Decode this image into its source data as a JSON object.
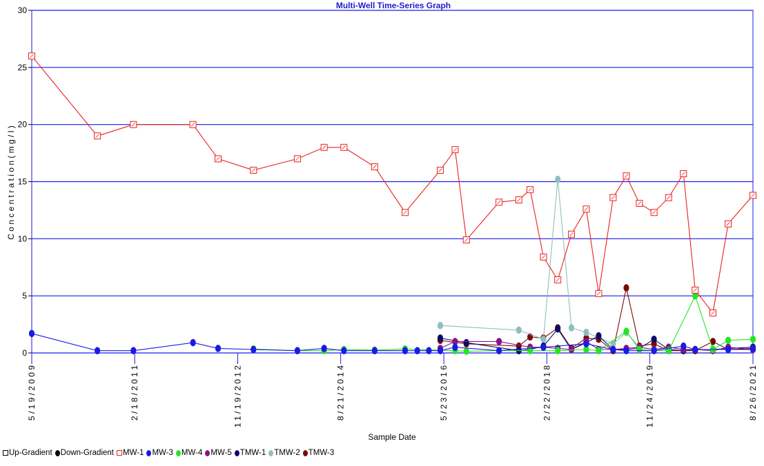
{
  "chart_data": {
    "type": "line",
    "title": "Multi-Well Time-Series Graph",
    "xlabel": "Sample Date",
    "ylabel": "C o n c e n t r a t i o n   ( m g / l )",
    "ylim": [
      0,
      30
    ],
    "yticks": [
      0,
      5,
      10,
      15,
      20,
      25,
      30
    ],
    "xlim": [
      "2009-05-19",
      "2021-08-26"
    ],
    "xticks": [
      {
        "date": "2009-05-19",
        "label": "5 / 1 9 / 2 0 0 9"
      },
      {
        "date": "2011-02-18",
        "label": "2 / 1 8 / 2 0 1 1"
      },
      {
        "date": "2012-11-19",
        "label": "1 1 / 1 9 / 2 0 1 2"
      },
      {
        "date": "2014-08-21",
        "label": "8 / 2 1 / 2 0 1 4"
      },
      {
        "date": "2016-05-23",
        "label": "5 / 2 3 / 2 0 1 6"
      },
      {
        "date": "2018-02-22",
        "label": "2 / 2 2 / 2 0 1 8"
      },
      {
        "date": "2019-11-24",
        "label": "1 1 / 2 4 / 2 0 1 9"
      },
      {
        "date": "2021-08-26",
        "label": "8 / 2 6 / 2 0 2 1"
      }
    ],
    "grid": "horizontal",
    "legend_position": "bottom-left",
    "legend": [
      {
        "label": "Up-Gradient",
        "marker": "square-open",
        "color": "#000000"
      },
      {
        "label": "Down-Gradient",
        "marker": "circle",
        "color": "#000000"
      },
      {
        "label": "MW-1",
        "marker": "square-open",
        "color": "#e8201c"
      },
      {
        "label": "MW-3",
        "marker": "circle",
        "color": "#1a1ae6"
      },
      {
        "label": "MW-4",
        "marker": "circle",
        "color": "#22e622"
      },
      {
        "label": "MW-5",
        "marker": "circle",
        "color": "#8a128a"
      },
      {
        "label": "TMW-1",
        "marker": "circle",
        "color": "#0c0c66"
      },
      {
        "label": "TMW-2",
        "marker": "circle",
        "color": "#8fbfbc"
      },
      {
        "label": "TMW-3",
        "marker": "circle",
        "color": "#7a0a0a"
      }
    ],
    "series": [
      {
        "name": "MW-1",
        "marker": "square-open",
        "color": "#e8201c",
        "points": [
          [
            "2009-05-19",
            26.0
          ],
          [
            "2010-07-01",
            19.0
          ],
          [
            "2011-02-10",
            20.0
          ],
          [
            "2012-02-15",
            20.0
          ],
          [
            "2012-07-20",
            17.0
          ],
          [
            "2013-02-25",
            16.0
          ],
          [
            "2013-11-25",
            17.0
          ],
          [
            "2014-05-10",
            18.0
          ],
          [
            "2014-09-10",
            18.0
          ],
          [
            "2015-03-20",
            16.3
          ],
          [
            "2015-09-25",
            12.3
          ],
          [
            "2016-05-01",
            16.0
          ],
          [
            "2016-08-01",
            17.8
          ],
          [
            "2016-10-10",
            9.9
          ],
          [
            "2017-05-01",
            13.2
          ],
          [
            "2017-09-01",
            13.4
          ],
          [
            "2017-11-10",
            14.3
          ],
          [
            "2018-02-01",
            8.4
          ],
          [
            "2018-05-01",
            6.4
          ],
          [
            "2018-07-25",
            10.4
          ],
          [
            "2018-10-25",
            12.6
          ],
          [
            "2019-01-10",
            5.2
          ],
          [
            "2019-04-10",
            13.6
          ],
          [
            "2019-07-01",
            15.5
          ],
          [
            "2019-09-20",
            13.1
          ],
          [
            "2019-12-20",
            12.3
          ],
          [
            "2020-03-20",
            13.6
          ],
          [
            "2020-06-20",
            15.7
          ],
          [
            "2020-09-01",
            5.5
          ],
          [
            "2020-12-20",
            3.5
          ],
          [
            "2021-03-25",
            11.3
          ],
          [
            "2021-08-26",
            13.8
          ]
        ]
      },
      {
        "name": "MW-3",
        "marker": "circle",
        "color": "#1a1ae6",
        "points": [
          [
            "2009-05-19",
            1.7
          ],
          [
            "2010-07-01",
            0.2
          ],
          [
            "2011-02-10",
            0.2
          ],
          [
            "2012-02-15",
            0.9
          ],
          [
            "2012-07-20",
            0.4
          ],
          [
            "2013-02-25",
            0.3
          ],
          [
            "2013-11-25",
            0.2
          ],
          [
            "2014-05-10",
            0.4
          ],
          [
            "2014-09-10",
            0.2
          ],
          [
            "2015-03-20",
            0.2
          ],
          [
            "2015-09-25",
            0.2
          ],
          [
            "2015-12-10",
            0.2
          ],
          [
            "2016-02-20",
            0.2
          ],
          [
            "2016-05-01",
            0.2
          ],
          [
            "2016-08-01",
            0.5
          ],
          [
            "2017-05-01",
            0.2
          ],
          [
            "2018-02-01",
            0.5
          ],
          [
            "2018-10-25",
            0.8
          ],
          [
            "2019-04-10",
            0.3
          ],
          [
            "2019-07-01",
            0.2
          ],
          [
            "2019-12-20",
            0.2
          ],
          [
            "2020-06-20",
            0.6
          ],
          [
            "2020-09-01",
            0.3
          ],
          [
            "2021-03-25",
            0.3
          ],
          [
            "2021-08-26",
            0.4
          ]
        ]
      },
      {
        "name": "MW-4",
        "marker": "circle",
        "color": "#22e622",
        "points": [
          [
            "2013-02-25",
            0.35
          ],
          [
            "2013-11-25",
            0.2
          ],
          [
            "2014-05-10",
            0.2
          ],
          [
            "2014-09-10",
            0.3
          ],
          [
            "2015-03-20",
            0.25
          ],
          [
            "2015-09-25",
            0.35
          ],
          [
            "2016-08-01",
            0.2
          ],
          [
            "2016-10-10",
            0.15
          ],
          [
            "2017-05-01",
            0.2
          ],
          [
            "2017-11-10",
            0.2
          ],
          [
            "2018-05-01",
            0.2
          ],
          [
            "2018-10-25",
            0.3
          ],
          [
            "2019-01-10",
            0.2
          ],
          [
            "2019-07-01",
            1.9
          ],
          [
            "2019-09-20",
            0.3
          ],
          [
            "2019-12-20",
            0.2
          ],
          [
            "2020-03-20",
            0.2
          ],
          [
            "2020-09-01",
            5.0
          ],
          [
            "2020-12-20",
            0.3
          ],
          [
            "2021-03-25",
            1.1
          ],
          [
            "2021-08-26",
            1.2
          ]
        ]
      },
      {
        "name": "MW-5",
        "marker": "circle",
        "color": "#8a128a",
        "points": [
          [
            "2016-05-01",
            0.4
          ],
          [
            "2016-08-01",
            1.0
          ],
          [
            "2017-05-01",
            1.0
          ],
          [
            "2017-11-10",
            0.5
          ],
          [
            "2018-02-01",
            0.5
          ],
          [
            "2018-05-01",
            0.4
          ],
          [
            "2018-07-25",
            0.3
          ],
          [
            "2018-10-25",
            1.0
          ],
          [
            "2019-01-10",
            0.3
          ],
          [
            "2019-04-10",
            0.3
          ],
          [
            "2019-07-01",
            0.4
          ],
          [
            "2019-09-20",
            0.5
          ],
          [
            "2019-12-20",
            0.3
          ],
          [
            "2020-03-20",
            0.5
          ],
          [
            "2020-06-20",
            0.3
          ],
          [
            "2020-09-01",
            0.3
          ],
          [
            "2020-12-20",
            0.2
          ],
          [
            "2021-03-25",
            0.5
          ],
          [
            "2021-08-26",
            0.3
          ]
        ]
      },
      {
        "name": "TMW-1",
        "marker": "circle",
        "color": "#0c0c66",
        "points": [
          [
            "2016-05-01",
            1.3
          ],
          [
            "2016-10-10",
            0.9
          ],
          [
            "2017-09-01",
            0.2
          ],
          [
            "2017-11-10",
            0.3
          ],
          [
            "2018-02-01",
            0.6
          ],
          [
            "2018-05-01",
            2.1
          ],
          [
            "2018-07-25",
            0.3
          ],
          [
            "2018-10-25",
            0.9
          ],
          [
            "2019-01-10",
            1.5
          ],
          [
            "2019-04-10",
            0.3
          ],
          [
            "2019-07-01",
            0.3
          ],
          [
            "2019-09-20",
            0.4
          ],
          [
            "2019-12-20",
            1.2
          ],
          [
            "2020-03-20",
            0.3
          ],
          [
            "2020-06-20",
            0.2
          ],
          [
            "2020-09-01",
            0.3
          ],
          [
            "2020-12-20",
            0.3
          ],
          [
            "2021-03-25",
            0.4
          ],
          [
            "2021-08-26",
            0.5
          ]
        ]
      },
      {
        "name": "TMW-2",
        "marker": "circle",
        "color": "#8fbfbc",
        "points": [
          [
            "2016-05-01",
            2.4
          ],
          [
            "2017-09-01",
            2.0
          ],
          [
            "2018-02-01",
            1.2
          ],
          [
            "2018-05-01",
            15.2
          ],
          [
            "2018-07-25",
            2.2
          ],
          [
            "2018-10-25",
            1.8
          ],
          [
            "2019-04-10",
            0.8
          ],
          [
            "2019-07-01",
            1.8
          ],
          [
            "2019-09-20",
            0.5
          ],
          [
            "2019-12-20",
            0.3
          ],
          [
            "2020-03-20",
            0.5
          ],
          [
            "2020-06-20",
            0.3
          ],
          [
            "2020-12-20",
            0.3
          ],
          [
            "2021-03-25",
            0.3
          ]
        ]
      },
      {
        "name": "TMW-3",
        "marker": "circle",
        "color": "#7a0a0a",
        "points": [
          [
            "2016-05-01",
            1.1
          ],
          [
            "2016-10-10",
            0.8
          ],
          [
            "2017-09-01",
            0.6
          ],
          [
            "2017-11-10",
            1.4
          ],
          [
            "2018-02-01",
            1.3
          ],
          [
            "2018-05-01",
            2.2
          ],
          [
            "2018-07-25",
            0.4
          ],
          [
            "2018-10-25",
            1.3
          ],
          [
            "2019-01-10",
            1.2
          ],
          [
            "2019-04-10",
            0.2
          ],
          [
            "2019-07-01",
            5.7
          ],
          [
            "2019-09-20",
            0.6
          ],
          [
            "2019-12-20",
            0.8
          ],
          [
            "2020-03-20",
            0.2
          ],
          [
            "2020-06-20",
            0.2
          ],
          [
            "2020-09-01",
            0.2
          ],
          [
            "2020-12-20",
            1.0
          ],
          [
            "2021-03-25",
            0.3
          ],
          [
            "2021-08-26",
            0.3
          ]
        ]
      }
    ]
  }
}
